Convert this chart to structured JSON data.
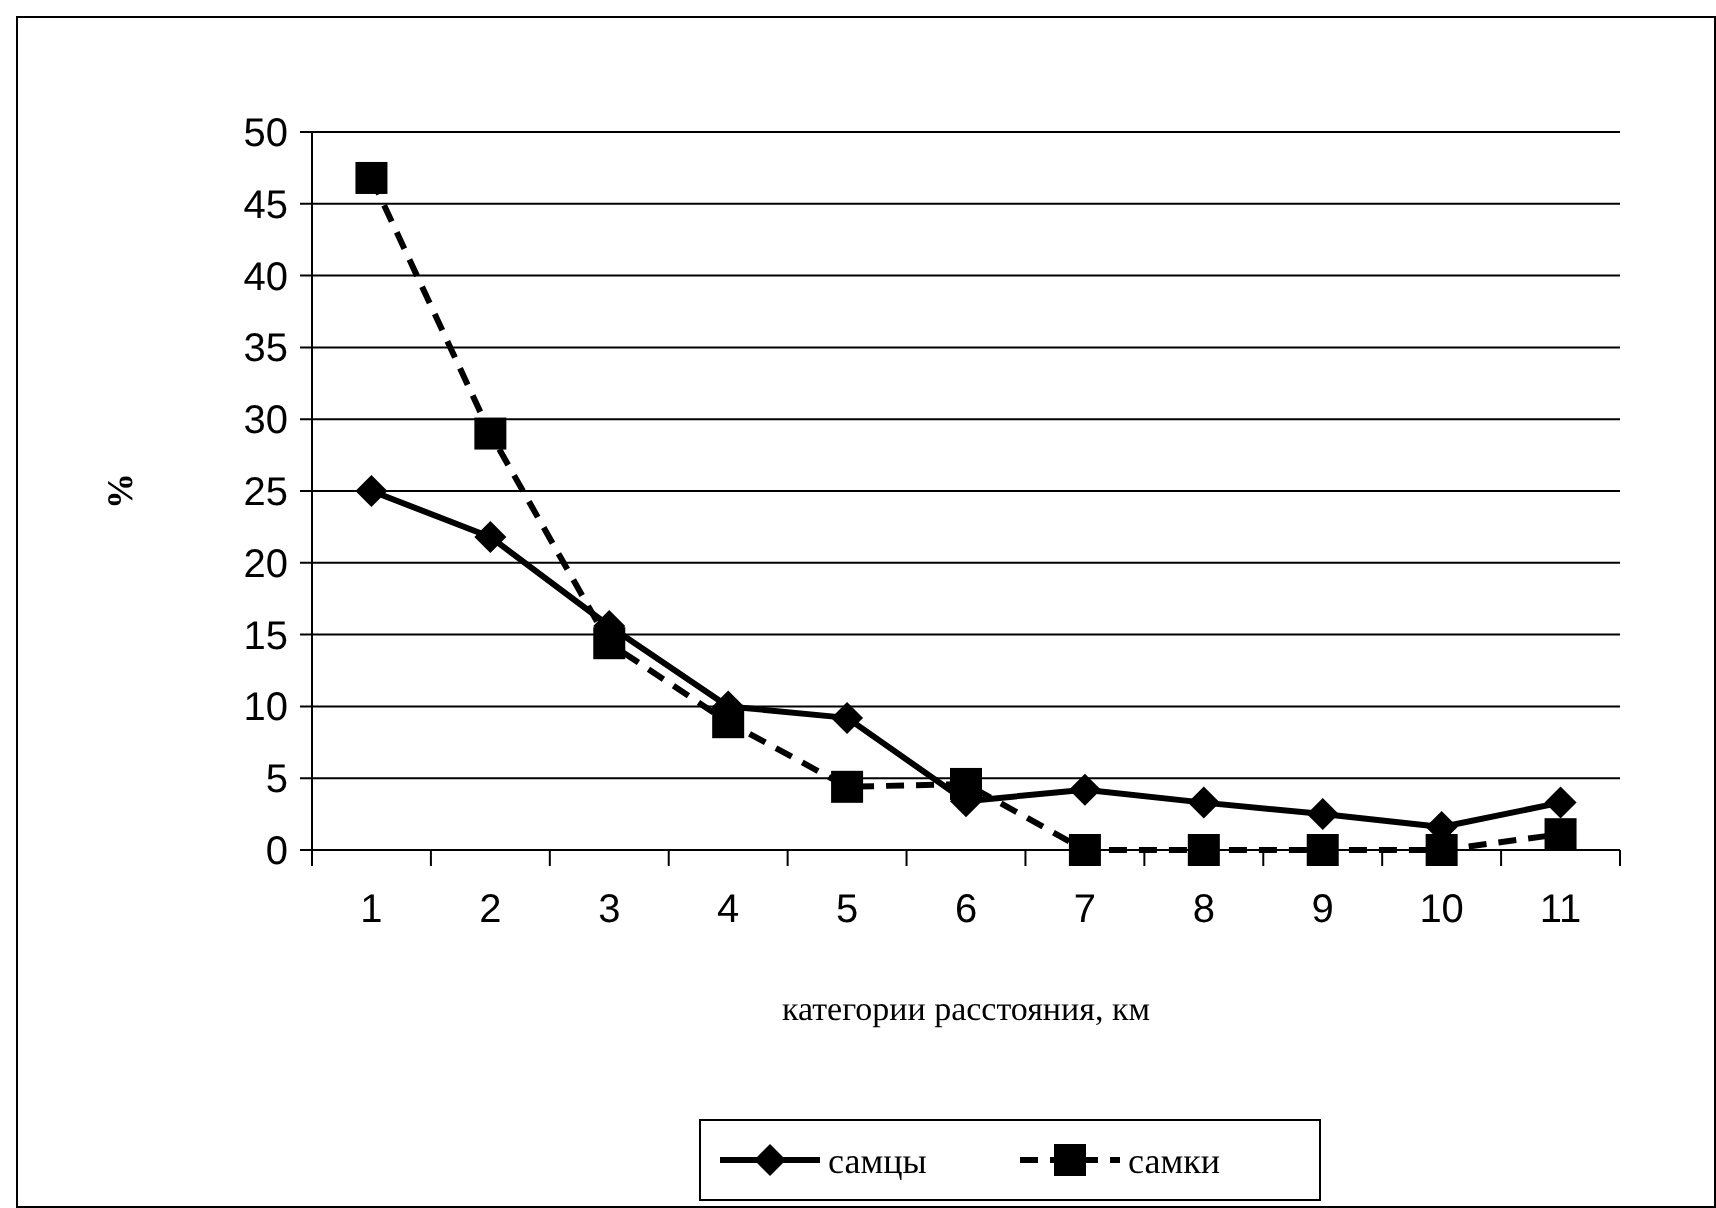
{
  "chart_data": {
    "type": "line",
    "xlabel": "категории расстояния, км",
    "ylabel": "%",
    "categories": [
      "1",
      "2",
      "3",
      "4",
      "5",
      "6",
      "7",
      "8",
      "9",
      "10",
      "11"
    ],
    "series": [
      {
        "name": "самцы",
        "color": "#000000",
        "marker": "diamond",
        "line_style": "solid",
        "values": [
          25,
          21.8,
          15.6,
          10,
          9.2,
          3.4,
          4.2,
          3.3,
          2.5,
          1.6,
          3.3
        ]
      },
      {
        "name": "самки",
        "color": "#000000",
        "marker": "square",
        "line_style": "dashed",
        "values": [
          46.8,
          29,
          14.4,
          8.9,
          4.4,
          4.6,
          0,
          0,
          0,
          0,
          1.1
        ]
      }
    ],
    "ylim": [
      0,
      50
    ],
    "yticks": [
      0,
      5,
      10,
      15,
      20,
      25,
      30,
      35,
      40,
      45,
      50
    ],
    "grid": "y",
    "legend": "bottom"
  }
}
